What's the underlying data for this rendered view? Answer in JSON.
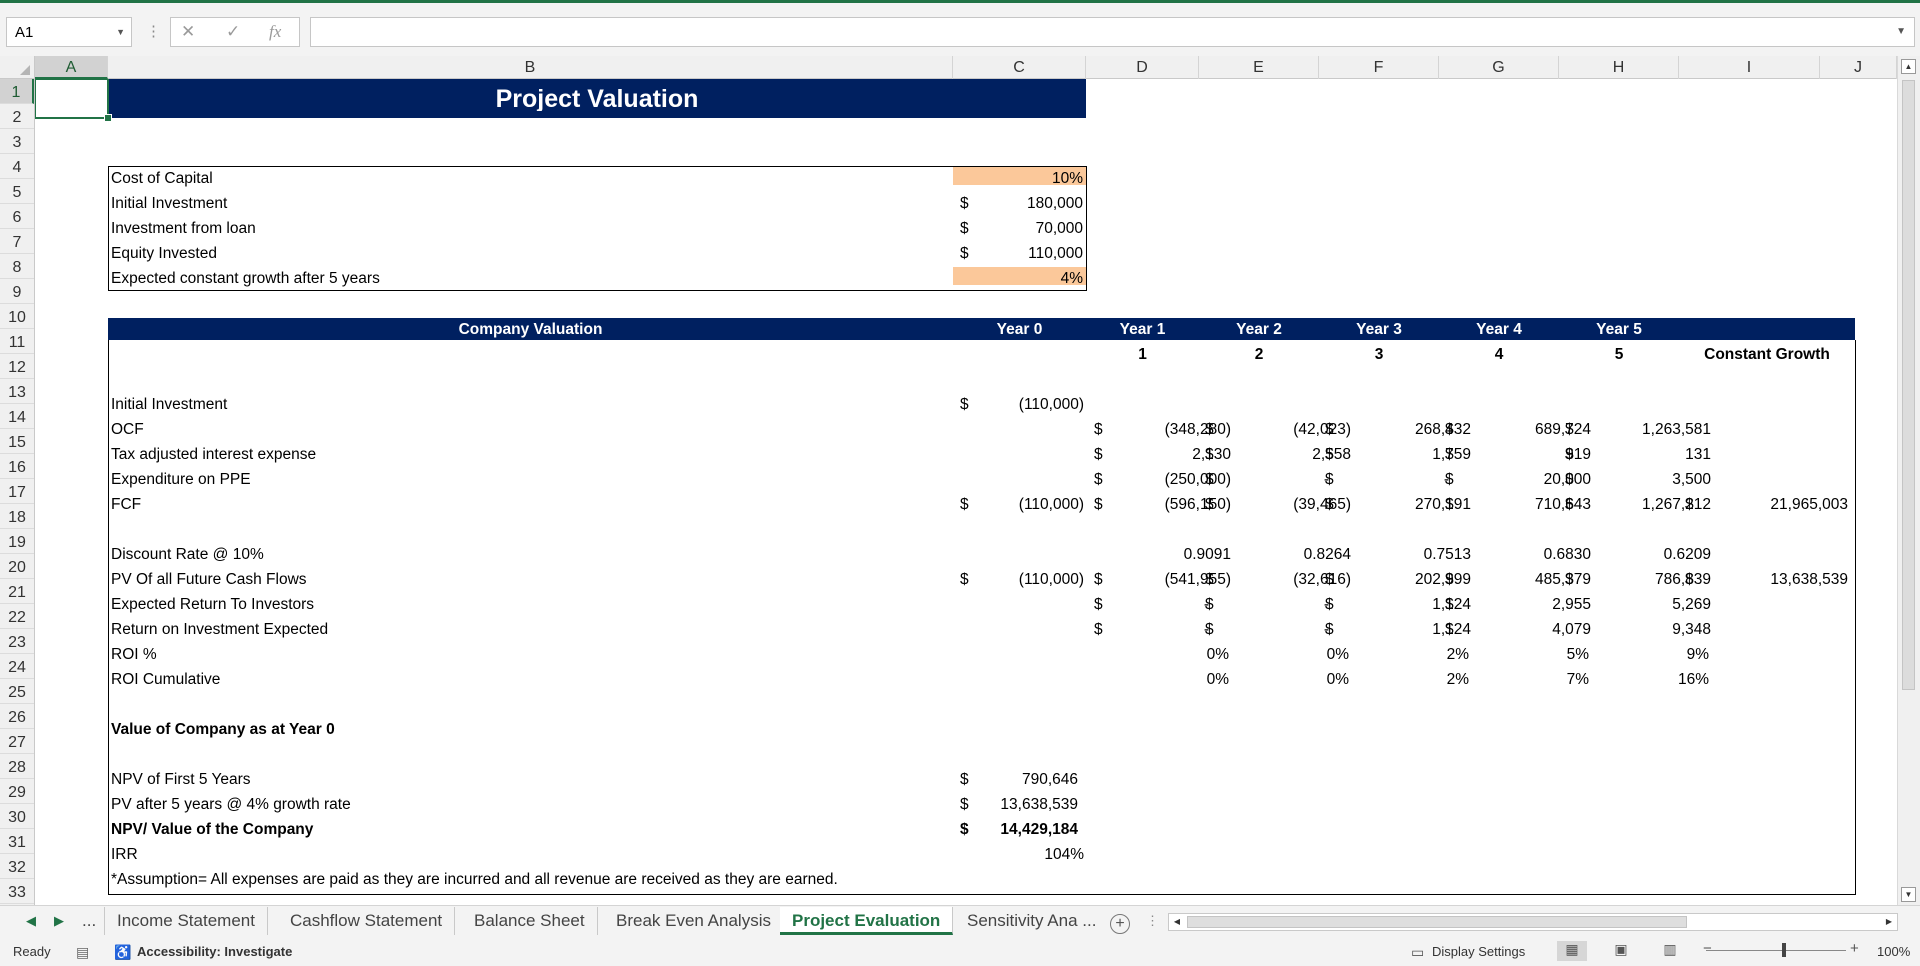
{
  "namebox": {
    "value": "A1"
  },
  "formula_bar": {
    "value": ""
  },
  "columns": [
    "A",
    "B",
    "C",
    "D",
    "E",
    "F",
    "G",
    "H",
    "I",
    "J"
  ],
  "rows": [
    "1",
    "2",
    "3",
    "4",
    "5",
    "6",
    "7",
    "8",
    "9",
    "10",
    "11",
    "12",
    "13",
    "14",
    "15",
    "16",
    "17",
    "18",
    "19",
    "20",
    "21",
    "22",
    "23",
    "24",
    "25",
    "26",
    "27",
    "28",
    "29",
    "30",
    "31",
    "32",
    "33"
  ],
  "title": "Project Valuation",
  "inputs": {
    "labels": [
      "Cost of Capital",
      "Initial Investment",
      "Investment from loan",
      "Equity Invested",
      "Expected constant growth after 5 years"
    ],
    "currency": [
      "",
      "$",
      "$",
      "$",
      ""
    ],
    "values": [
      "10%",
      "180,000",
      "70,000",
      "110,000",
      "4%"
    ]
  },
  "valuation_header": {
    "title": "Company Valuation",
    "years": [
      "Year 0",
      "Year 1",
      "Year 2",
      "Year 3",
      "Year 4",
      "Year 5"
    ]
  },
  "year_numbers": [
    "1",
    "2",
    "3",
    "4",
    "5"
  ],
  "constant_growth_label": "Constant Growth",
  "rows_data": {
    "r13": {
      "label": "Initial Investment",
      "c": "(110,000)"
    },
    "r14": {
      "label": "OCF",
      "d": "(348,280)",
      "e": "(42,023)",
      "f": "268,432",
      "g": "689,724",
      "h": "1,263,581"
    },
    "r15": {
      "label": "Tax adjusted interest expense",
      "d": "2,130",
      "e": "2,558",
      "f": "1,759",
      "g": "919",
      "h": "131"
    },
    "r16": {
      "label": "Expenditure on PPE",
      "d": "(250,000)",
      "e": "-",
      "f": "-",
      "g": "20,000",
      "h": "3,500"
    },
    "r17": {
      "label": "FCF",
      "c": "(110,000)",
      "d": "(596,150)",
      "e": "(39,465)",
      "f": "270,191",
      "g": "710,643",
      "h": "1,267,212",
      "i": "21,965,003"
    },
    "r19": {
      "label": "Discount Rate @ 10%",
      "d": "0.9091",
      "e": "0.8264",
      "f": "0.7513",
      "g": "0.6830",
      "h": "0.6209"
    },
    "r20": {
      "label": "PV Of all Future Cash Flows",
      "c": "(110,000)",
      "d": "(541,955)",
      "e": "(32,616)",
      "f": "202,999",
      "g": "485,379",
      "h": "786,839",
      "i": "13,638,539"
    },
    "r21": {
      "label": "Expected Return To Investors",
      "d": "-",
      "e": "-",
      "f": "1,124",
      "g": "2,955",
      "h": "5,269"
    },
    "r22": {
      "label": "Return on Investment Expected",
      "d": "-",
      "e": "-",
      "f": "1,124",
      "g": "4,079",
      "h": "9,348"
    },
    "r23": {
      "label": "ROI %",
      "d": "0%",
      "e": "0%",
      "f": "2%",
      "g": "5%",
      "h": "9%"
    },
    "r24": {
      "label": "ROI Cumulative",
      "d": "0%",
      "e": "0%",
      "f": "2%",
      "g": "7%",
      "h": "16%"
    },
    "r26": {
      "label": "Value of Company as at Year 0"
    },
    "r28": {
      "label": "NPV of First 5 Years",
      "c": "790,646"
    },
    "r29": {
      "label": "PV after 5 years @ 4% growth rate",
      "c": "13,638,539"
    },
    "r30": {
      "label": "NPV/ Value of the Company",
      "c": "14,429,184"
    },
    "r31": {
      "label": "IRR",
      "c": "104%"
    },
    "r32": {
      "label": "*Assumption= All expenses are paid as they are incurred and all revenue are received as they are earned."
    }
  },
  "currency_symbol": "$",
  "sheet_tabs": [
    "Income Statement",
    "Cashflow Statement",
    "Balance Sheet",
    "Break Even Analysis",
    "Project Evaluation",
    "Sensitivity Ana ..."
  ],
  "active_tab": "Project Evaluation",
  "tab_more": "...",
  "status": {
    "ready": "Ready",
    "accessibility": "Accessibility: Investigate",
    "display_settings": "Display Settings",
    "zoom": "100%"
  },
  "colors": {
    "header_band": "#002060",
    "input_fill": "#fbc89a",
    "excel_green": "#217346"
  }
}
